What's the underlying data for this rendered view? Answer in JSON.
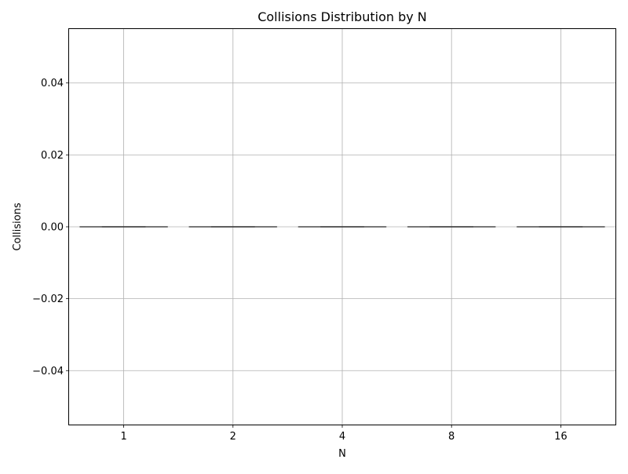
{
  "chart_data": {
    "type": "box",
    "title": "Collisions Distribution by N",
    "xlabel": "N",
    "ylabel": "Collisions",
    "categories": [
      "1",
      "2",
      "4",
      "8",
      "16"
    ],
    "boxes": [
      {
        "category": "1",
        "min": 0,
        "q1": 0,
        "median": 0,
        "q3": 0,
        "max": 0
      },
      {
        "category": "2",
        "min": 0,
        "q1": 0,
        "median": 0,
        "q3": 0,
        "max": 0
      },
      {
        "category": "4",
        "min": 0,
        "q1": 0,
        "median": 0,
        "q3": 0,
        "max": 0
      },
      {
        "category": "8",
        "min": 0,
        "q1": 0,
        "median": 0,
        "q3": 0,
        "max": 0
      },
      {
        "category": "16",
        "min": 0,
        "q1": 0,
        "median": 0,
        "q3": 0,
        "max": 0
      }
    ],
    "ylim": [
      -0.055,
      0.055
    ],
    "yticks": [
      -0.04,
      -0.02,
      0.0,
      0.02,
      0.04
    ],
    "ytick_labels": [
      "−0.04",
      "−0.02",
      "0.00",
      "0.02",
      "0.04"
    ],
    "grid": true,
    "colors": {
      "box_line": "#3f3f3f",
      "grid": "#b0b0b0",
      "axes": "#000000"
    }
  }
}
